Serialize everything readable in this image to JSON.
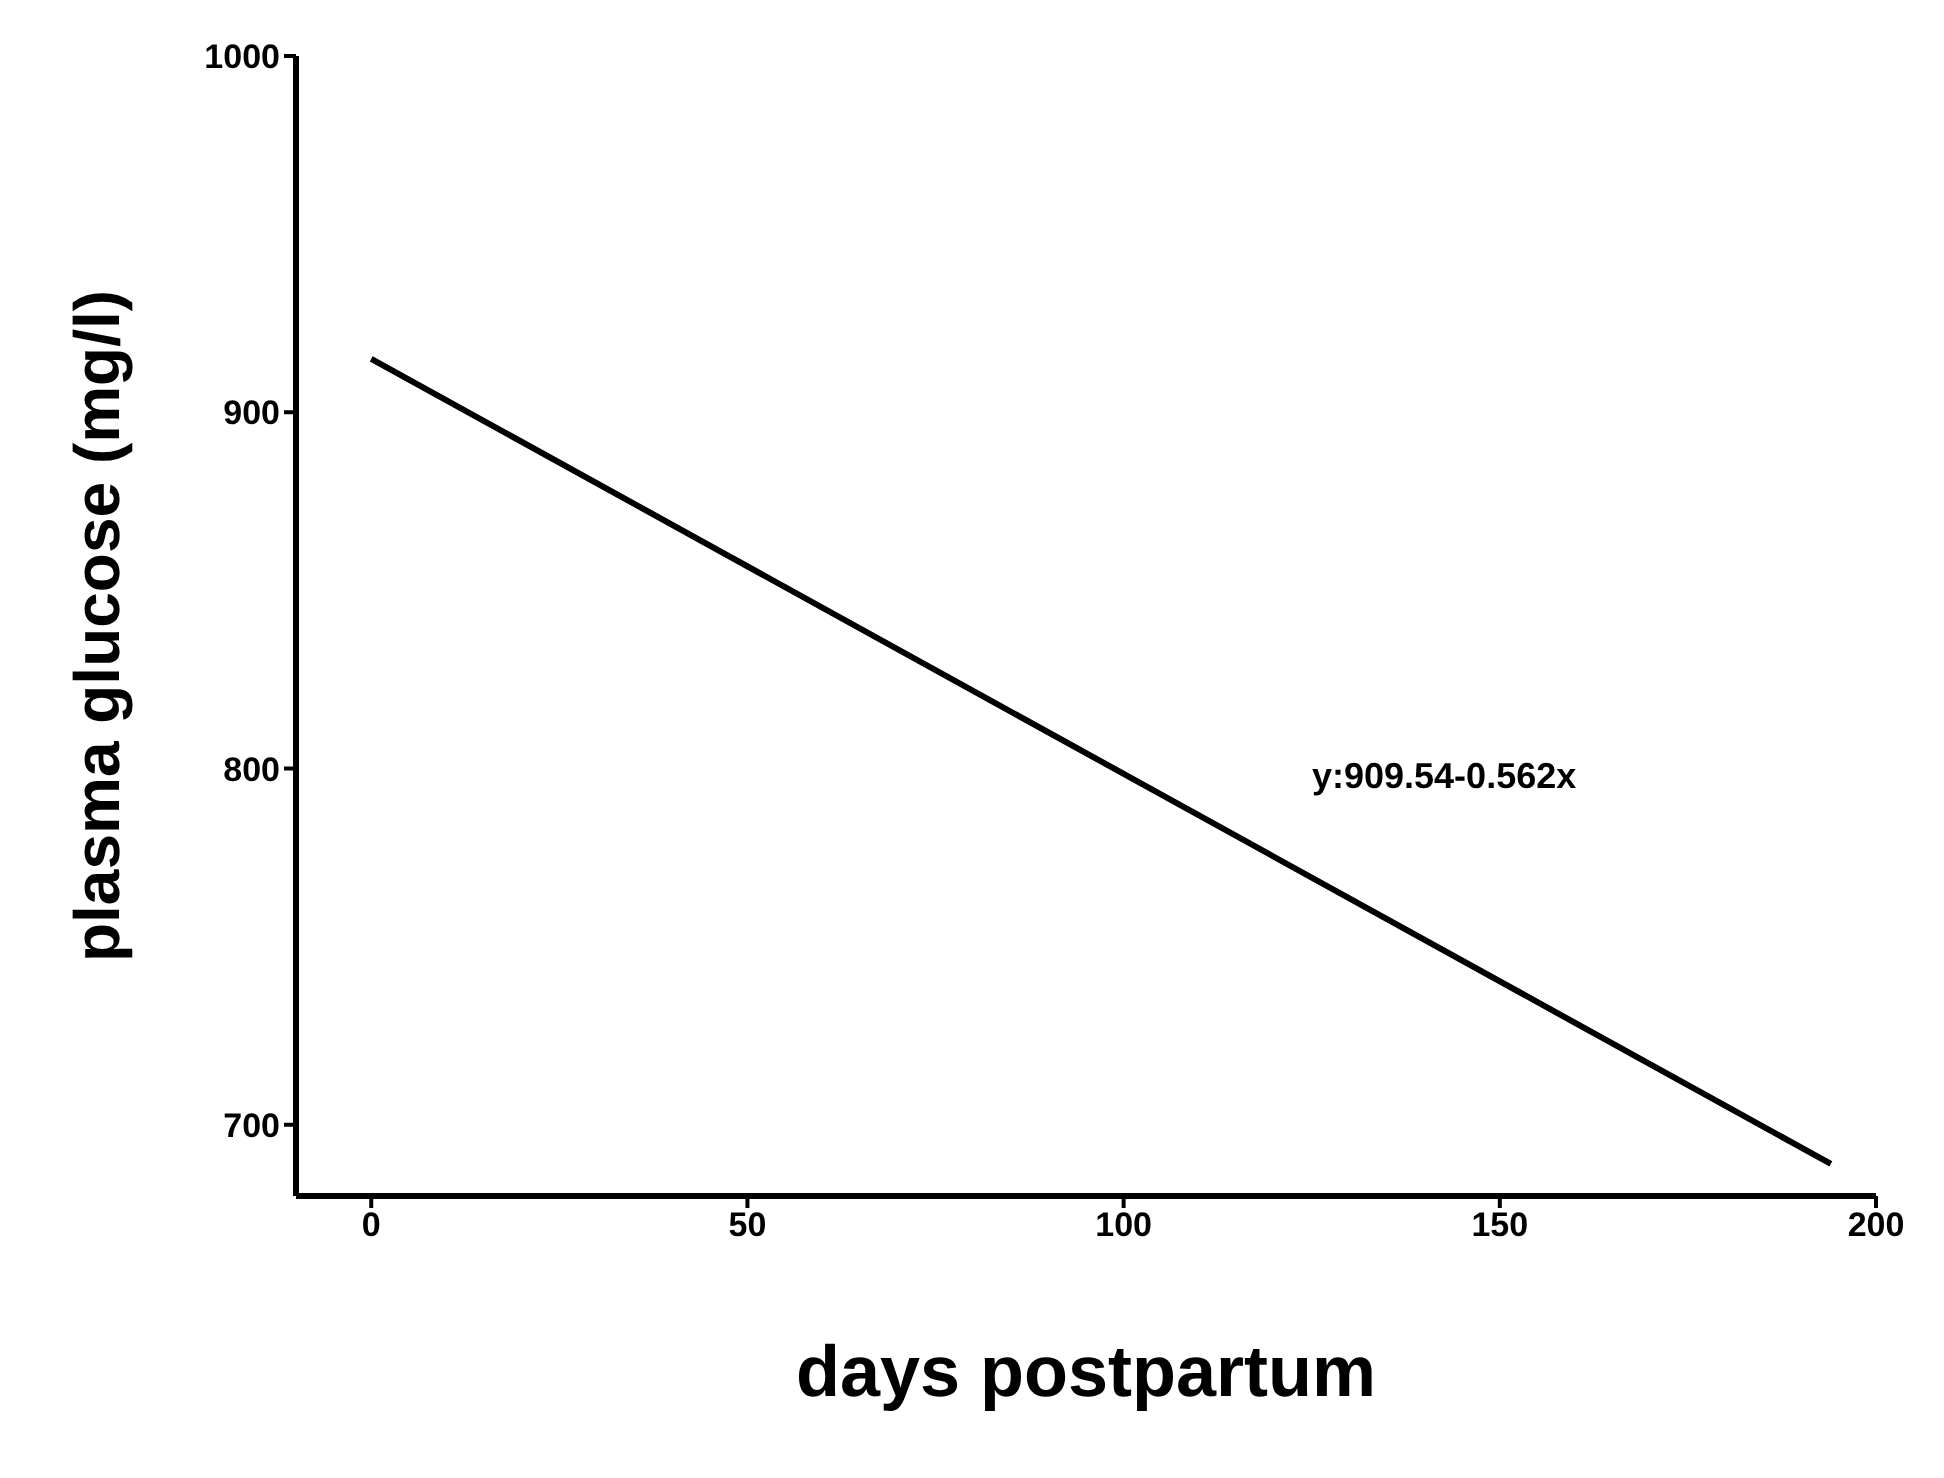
{
  "chart_data": {
    "type": "line",
    "xlabel": "days postpartum",
    "ylabel": "plasma glucose (mg/l)",
    "annotations": [
      "y:909.54-0.562x"
    ],
    "series": [
      {
        "x": [
          0,
          194
        ],
        "values": [
          915,
          689
        ],
        "color": "#000000"
      }
    ],
    "xlim": [
      -10,
      200
    ],
    "xticks": [
      0,
      50,
      100,
      150,
      200
    ],
    "ylim": [
      680,
      1000
    ],
    "yticks": [
      700,
      800,
      900,
      1000
    ],
    "grid": false,
    "marker": "none",
    "line_style": "solid"
  }
}
